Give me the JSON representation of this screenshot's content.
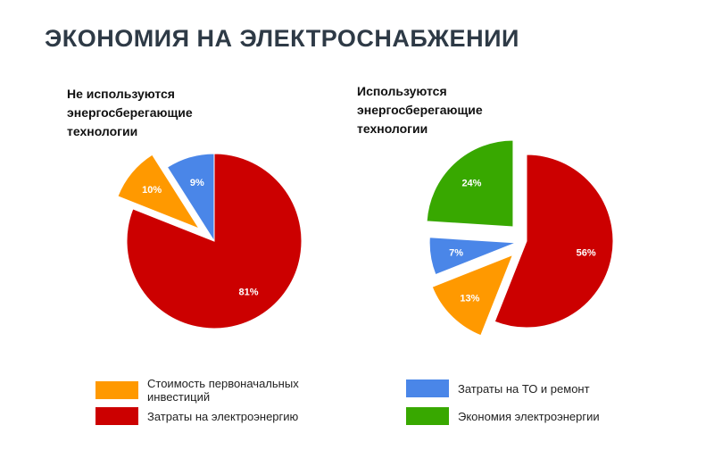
{
  "title": "ЭКОНОМИЯ НА ЭЛЕКТРОСНАБЖЕНИИ",
  "chart_data": [
    {
      "type": "pie",
      "title": "Не используются энергосберегающие технологии",
      "slices": [
        {
          "category": "Затраты на ТО и ремонт",
          "value": 9,
          "label": "9%",
          "color": "#4a86e8",
          "exploded": false
        },
        {
          "category": "Стоимость первоначальных инвестиций",
          "value": 10,
          "label": "10%",
          "color": "#ff9900",
          "exploded": true
        },
        {
          "category": "Затраты на электроэнергию",
          "value": 81,
          "label": "81%",
          "color": "#cc0000",
          "exploded": false
        }
      ]
    },
    {
      "type": "pie",
      "title": "Используются энергосберегающие технологии",
      "slices": [
        {
          "category": "Затраты на электроэнергию",
          "value": 56,
          "label": "56%",
          "color": "#cc0000",
          "exploded": false
        },
        {
          "category": "Стоимость первоначальных инвестиций",
          "value": 13,
          "label": "13%",
          "color": "#ff9900",
          "exploded": true
        },
        {
          "category": "Затраты на ТО и ремонт",
          "value": 7,
          "label": "7%",
          "color": "#4a86e8",
          "exploded": true
        },
        {
          "category": "Экономия электроэнергии",
          "value": 24,
          "label": "24%",
          "color": "#38a800",
          "exploded": true
        }
      ]
    }
  ],
  "legend": [
    {
      "label": "Стоимость первоначальных инвестиций",
      "color": "#ff9900"
    },
    {
      "label": "Затраты на электроэнергию",
      "color": "#cc0000"
    },
    {
      "label": "Затраты на ТО и ремонт",
      "color": "#4a86e8"
    },
    {
      "label": "Экономия электроэнергии",
      "color": "#38a800"
    }
  ]
}
